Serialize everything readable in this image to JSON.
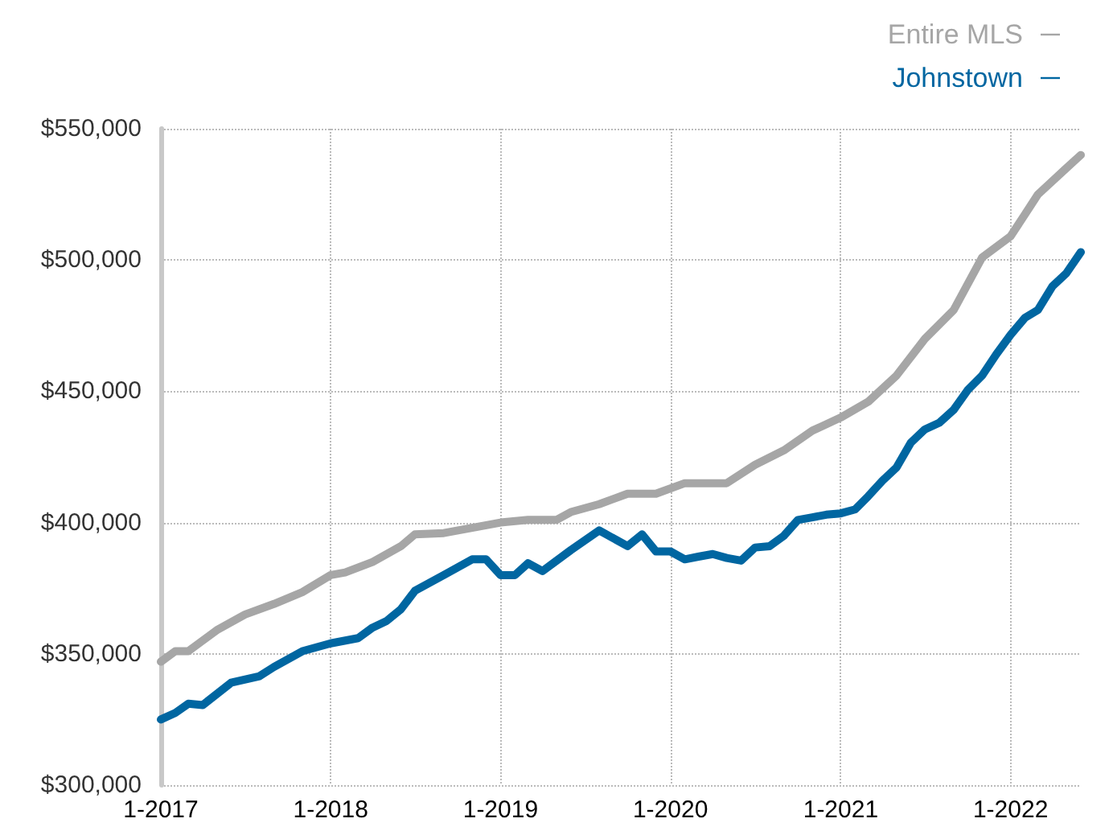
{
  "chart_data": {
    "type": "line",
    "xlim": [
      "2017-01",
      "2022-06"
    ],
    "xticks": [
      {
        "value": "2017-01",
        "label": "1-2017"
      },
      {
        "value": "2018-01",
        "label": "1-2018"
      },
      {
        "value": "2019-01",
        "label": "1-2019"
      },
      {
        "value": "2020-01",
        "label": "1-2020"
      },
      {
        "value": "2021-01",
        "label": "1-2021"
      },
      {
        "value": "2022-01",
        "label": "1-2022"
      }
    ],
    "ylim": [
      300000,
      550000
    ],
    "yticks": [
      {
        "value": 300000,
        "label": "$300,000"
      },
      {
        "value": 350000,
        "label": "$350,000"
      },
      {
        "value": 400000,
        "label": "$400,000"
      },
      {
        "value": 450000,
        "label": "$450,000"
      },
      {
        "value": 500000,
        "label": "$500,000"
      },
      {
        "value": 550000,
        "label": "$550,000"
      }
    ],
    "grid": true,
    "legend": "top right",
    "marker": "none",
    "line_style": "solid",
    "series": [
      {
        "name": "Entire MLS",
        "color": "#a6a6a6",
        "x": [
          "2017-01",
          "2017-02",
          "2017-03",
          "2017-05",
          "2017-07",
          "2017-09",
          "2017-11",
          "2018-01",
          "2018-02",
          "2018-04",
          "2018-06",
          "2018-07",
          "2018-09",
          "2018-11",
          "2019-01",
          "2019-03",
          "2019-05",
          "2019-06",
          "2019-08",
          "2019-10",
          "2019-12",
          "2020-02",
          "2020-05",
          "2020-07",
          "2020-09",
          "2020-11",
          "2021-01",
          "2021-03",
          "2021-05",
          "2021-07",
          "2021-09",
          "2021-11",
          "2022-01",
          "2022-03",
          "2022-05",
          "2022-06"
        ],
        "values": [
          347000,
          351000,
          351000,
          359000,
          365000,
          369000,
          373500,
          380000,
          381000,
          385000,
          391000,
          395500,
          396000,
          398000,
          400000,
          401000,
          401000,
          404000,
          407000,
          411000,
          411000,
          415000,
          415000,
          422000,
          427500,
          435000,
          440000,
          446000,
          456000,
          470000,
          481000,
          501000,
          509000,
          525000,
          535000,
          540000
        ]
      },
      {
        "name": "Johnstown",
        "color": "#0066a1",
        "x": [
          "2017-01",
          "2017-02",
          "2017-03",
          "2017-04",
          "2017-06",
          "2017-08",
          "2017-09",
          "2017-11",
          "2018-01",
          "2018-03",
          "2018-04",
          "2018-05",
          "2018-06",
          "2018-07",
          "2018-09",
          "2018-11",
          "2018-12",
          "2019-01",
          "2019-02",
          "2019-03",
          "2019-04",
          "2019-06",
          "2019-08",
          "2019-10",
          "2019-11",
          "2019-12",
          "2020-01",
          "2020-02",
          "2020-03",
          "2020-04",
          "2020-05",
          "2020-06",
          "2020-07",
          "2020-08",
          "2020-09",
          "2020-10",
          "2020-11",
          "2020-12",
          "2021-01",
          "2021-02",
          "2021-03",
          "2021-04",
          "2021-05",
          "2021-06",
          "2021-07",
          "2021-08",
          "2021-09",
          "2021-10",
          "2021-11",
          "2021-12",
          "2022-01",
          "2022-02",
          "2022-03",
          "2022-04",
          "2022-05",
          "2022-06"
        ],
        "values": [
          325000,
          327500,
          331000,
          330500,
          339000,
          341500,
          345000,
          351000,
          354000,
          356000,
          360000,
          362500,
          367000,
          374000,
          380000,
          386000,
          386000,
          380000,
          380000,
          384500,
          381500,
          389500,
          397000,
          391000,
          395500,
          389000,
          389000,
          386000,
          387000,
          388000,
          386500,
          385500,
          390500,
          391000,
          395000,
          401000,
          402000,
          403000,
          403500,
          405000,
          410000,
          416000,
          421000,
          430500,
          435500,
          438000,
          443000,
          450500,
          456000,
          464000,
          471500,
          478000,
          481000,
          490000,
          495000,
          503000
        ]
      }
    ]
  }
}
